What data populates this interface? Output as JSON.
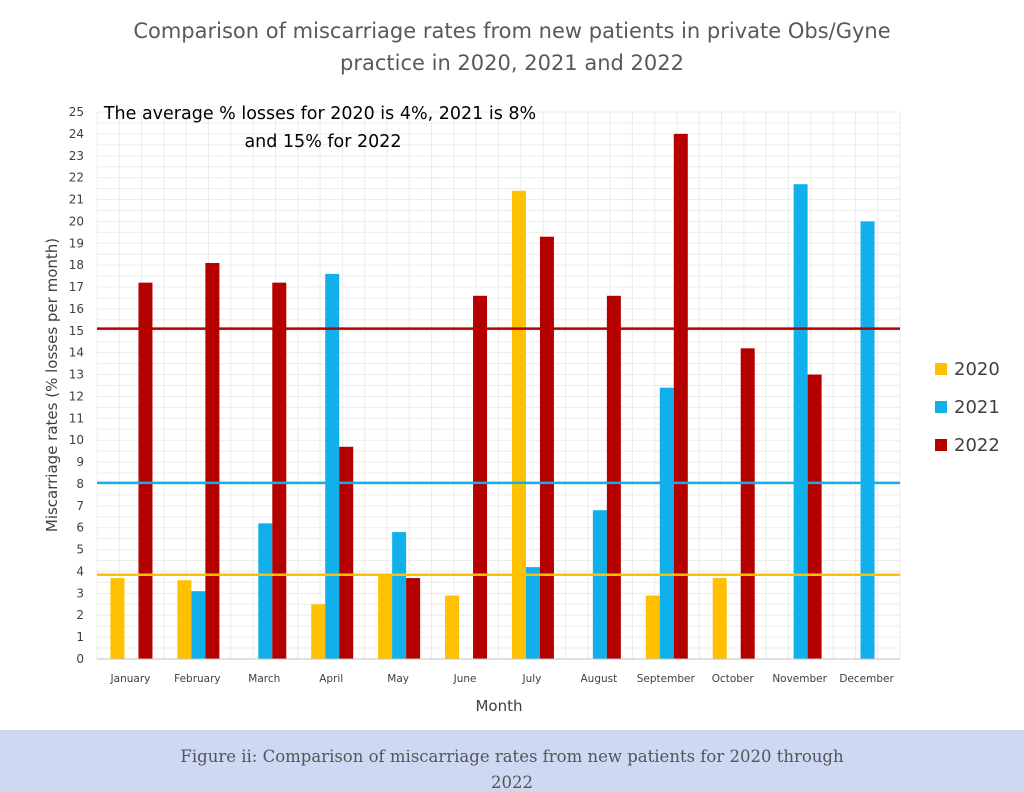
{
  "chart_data": {
    "type": "bar",
    "title_lines": [
      "Comparison of miscarriage rates from new patients in private Obs/Gyne",
      "practice in 2020, 2021 and 2022"
    ],
    "annotation_lines": [
      "The average % losses for 2020 is 4%, 2021 is 8%",
      "and 15% for 2022"
    ],
    "xlabel": "Month",
    "ylabel": "Miscarriage rates (% losses per month)",
    "ylim": [
      0,
      25
    ],
    "yticks": [
      "0",
      "1",
      "2",
      "3",
      "4",
      "5",
      "6",
      "7",
      "8",
      "9",
      "10",
      "11",
      "12",
      "13",
      "14",
      "15",
      "16",
      "17",
      "18",
      "19",
      "20",
      "21",
      "22",
      "23",
      "24",
      "25"
    ],
    "categories": [
      "January",
      "February",
      "March",
      "April",
      "May",
      "June",
      "July",
      "August",
      "September",
      "October",
      "November",
      "December"
    ],
    "series": [
      {
        "name": "2020",
        "color": "#ffc000",
        "values": [
          3.7,
          3.6,
          null,
          2.5,
          3.9,
          2.9,
          21.4,
          null,
          2.9,
          3.7,
          null,
          null
        ]
      },
      {
        "name": "2021",
        "color": "#12b0ea",
        "values": [
          null,
          3.1,
          6.2,
          17.6,
          5.8,
          null,
          4.2,
          6.8,
          12.4,
          null,
          21.7,
          20.0
        ]
      },
      {
        "name": "2022",
        "color": "#b50000",
        "values": [
          17.2,
          18.1,
          17.2,
          9.7,
          3.7,
          16.6,
          19.3,
          16.6,
          24.0,
          14.2,
          13.0,
          null
        ]
      }
    ],
    "reference_lines": [
      {
        "value": 3.85,
        "color": "#ffc000"
      },
      {
        "value": 8.05,
        "color": "#12b0ea"
      },
      {
        "value": 15.1,
        "color": "#b50000"
      }
    ],
    "grid": true,
    "legend_position": "right"
  },
  "caption_lines": [
    "Figure ii: Comparison of miscarriage rates from new patients for 2020 through",
    "2022"
  ]
}
